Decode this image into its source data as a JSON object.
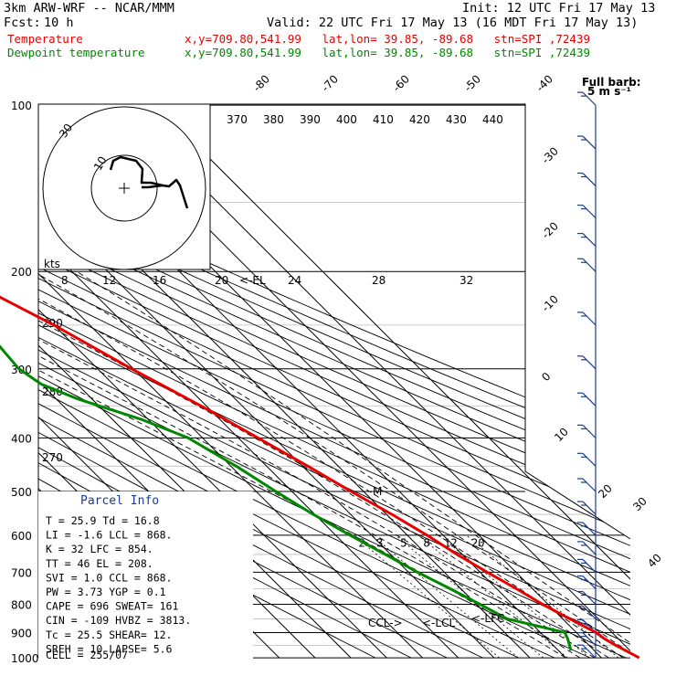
{
  "header": {
    "model": "3km ARW-WRF -- NCAR/MMM",
    "init": "Init: 12 UTC Fri 17 May 13",
    "fcst_label": "Fcst:",
    "fcst_value": "10 h",
    "valid": "Valid: 22 UTC Fri 17 May 13 (16 MDT Fri 17 May 13)",
    "temp_label": "Temperature",
    "dew_label": "Dewpoint temperature",
    "temp_loc": "x,y=709.80,541.99   lat,lon= 39.85, -89.68   stn=SPI ,72439",
    "dew_loc": "x,y=709.80,541.99   lat,lon= 39.85, -89.68   stn=SPI ,72439"
  },
  "colors": {
    "temperature": "#e60000",
    "dewpoint": "#008800",
    "isotherm": "#000000",
    "parcel_title": "#1a3c8a",
    "barb": "#1a3c8a"
  },
  "chart_data": {
    "type": "line",
    "chart_kind": "skew-T log-p sounding",
    "y_axis": "pressure (hPa), log scale",
    "pressure_ticks": [
      100,
      200,
      300,
      400,
      500,
      600,
      700,
      800,
      900,
      1000
    ],
    "isotherm_labels": [
      -80,
      -70,
      -60,
      -50,
      -40,
      -30,
      -20,
      -10,
      0,
      10,
      20,
      30,
      40
    ],
    "theta_labels_top": [
      370,
      380,
      390,
      400,
      410,
      420,
      430,
      440
    ],
    "theta_labels_left": [
      290,
      280,
      270
    ],
    "mixing_ratio_labels": [
      2,
      3,
      5,
      8,
      12,
      20
    ],
    "full_barb_note": "Full barb:",
    "full_barb_value": "5 m s⁻¹",
    "series": [
      {
        "name": "Temperature",
        "points": [
          [
            1000,
            30.5
          ],
          [
            950,
            27.5
          ],
          [
            925,
            26.2
          ],
          [
            900,
            25.5
          ],
          [
            850,
            22.0
          ],
          [
            800,
            18.5
          ],
          [
            750,
            15.5
          ],
          [
            700,
            12.0
          ],
          [
            650,
            8.5
          ],
          [
            600,
            5.5
          ],
          [
            550,
            1.5
          ],
          [
            500,
            -3.5
          ],
          [
            450,
            -8.5
          ],
          [
            400,
            -14.5
          ],
          [
            350,
            -21.5
          ],
          [
            300,
            -30.5
          ],
          [
            250,
            -40.0
          ],
          [
            220,
            -48.0
          ],
          [
            200,
            -53.0
          ],
          [
            180,
            -54.0
          ],
          [
            160,
            -51.0
          ],
          [
            140,
            -49.0
          ],
          [
            120,
            -46.5
          ],
          [
            100,
            -45.0
          ]
        ]
      },
      {
        "name": "Dewpoint temperature",
        "points": [
          [
            970,
            13.5
          ],
          [
            950,
            14.5
          ],
          [
            925,
            15.8
          ],
          [
            900,
            16.8
          ],
          [
            880,
            12.0
          ],
          [
            850,
            4.5
          ],
          [
            800,
            1.0
          ],
          [
            750,
            -3.0
          ],
          [
            700,
            -7.5
          ],
          [
            650,
            -11.5
          ],
          [
            600,
            -16.0
          ],
          [
            550,
            -20.5
          ],
          [
            500,
            -24.5
          ],
          [
            450,
            -28.5
          ],
          [
            400,
            -34.0
          ],
          [
            370,
            -42.0
          ],
          [
            340,
            -54.0
          ],
          [
            320,
            -60.0
          ],
          [
            300,
            -62.0
          ],
          [
            270,
            -61.0
          ],
          [
            240,
            -61.5
          ],
          [
            200,
            -63.5
          ],
          [
            160,
            -64.5
          ],
          [
            140,
            -66.5
          ],
          [
            120,
            -71.0
          ],
          [
            100,
            -76.5
          ]
        ]
      }
    ],
    "annotations": [
      "<-EL",
      "M",
      "CCL->",
      "<-LCL",
      "<-LFC"
    ],
    "hodograph": {
      "ring_labels": [
        "30",
        "10"
      ],
      "scale_label": "kts",
      "speed_ticks": [
        8,
        12,
        16,
        20,
        24,
        28,
        32
      ],
      "trace": [
        [
          0,
          0
        ],
        [
          1.5,
          0.2
        ],
        [
          4.5,
          0.7
        ],
        [
          6.0,
          0.4
        ],
        [
          7.5,
          -2.5
        ],
        [
          8.5,
          -3.5
        ],
        [
          7.5,
          -6
        ],
        [
          6,
          -2
        ],
        [
          4,
          0.5
        ],
        [
          2,
          5.5
        ],
        [
          -1,
          8.5
        ],
        [
          -3.5,
          9
        ]
      ]
    },
    "wind_barbs": {
      "pressures": [
        100,
        120,
        140,
        160,
        180,
        200,
        250,
        300,
        350,
        400,
        450,
        500,
        550,
        600,
        650,
        700,
        750,
        800,
        850,
        900,
        950,
        1000
      ],
      "kts_note": "wind barbs shown along right edge"
    }
  },
  "parcel": {
    "title": "Parcel Info",
    "rows": [
      [
        "T",
        "25.9",
        "Td",
        "16.8"
      ],
      [
        "LI",
        "-1.6",
        "LCL",
        "868."
      ],
      [
        "K",
        "32",
        "LFC",
        "854."
      ],
      [
        "TT",
        "46",
        "EL",
        "208."
      ],
      [
        "SVI",
        "1.0",
        "CCL",
        "868."
      ],
      [
        "PW",
        "3.73",
        "YGP",
        "0.1"
      ],
      [
        "CAPE",
        "696",
        "SWEAT",
        "161"
      ],
      [
        "CIN",
        "-109",
        "HVBZ",
        "3813."
      ],
      [
        "Tc",
        "25.5",
        "SHEAR",
        "12."
      ],
      [
        "SREH",
        "10",
        "LAPSE",
        "5.6"
      ]
    ],
    "cell_label": "CELL",
    "cell_value": "255/07"
  }
}
